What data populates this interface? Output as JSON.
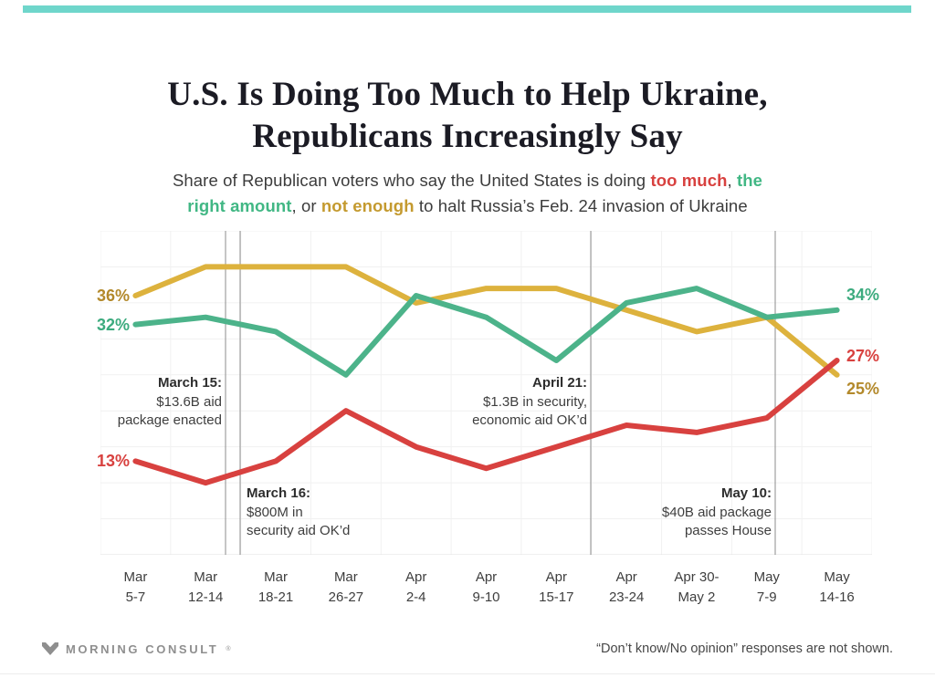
{
  "accent_color": "#6fd6cb",
  "header": {
    "title_line1": "U.S. Is Doing Too Much to Help Ukraine,",
    "title_line2": "Republicans Increasingly Say"
  },
  "subtitle": {
    "segments": [
      {
        "text": "Share of Republican voters who say the United States is doing "
      },
      {
        "text": "too much",
        "color": "#d8413f",
        "bold": true
      },
      {
        "text": ", "
      },
      {
        "text": "the",
        "color": "#41b784",
        "bold": true
      },
      {
        "br": true
      },
      {
        "text": "right amount",
        "color": "#41b784",
        "bold": true
      },
      {
        "text": ", or "
      },
      {
        "text": "not enough",
        "color": "#c49a2f",
        "bold": true
      },
      {
        "text": " to halt Russia’s Feb. 24 invasion of Ukraine"
      }
    ]
  },
  "chart_data": {
    "type": "line",
    "title": "U.S. Is Doing Too Much to Help Ukraine, Republicans Increasingly Say",
    "subtitle": "Share of Republican voters who say the United States is doing too much, the right amount, or not enough to halt Russia’s Feb. 24 invasion of Ukraine",
    "categories": [
      [
        "Mar",
        "5-7"
      ],
      [
        "Mar",
        "12-14"
      ],
      [
        "Mar",
        "18-21"
      ],
      [
        "Mar",
        "26-27"
      ],
      [
        "Apr",
        "2-4"
      ],
      [
        "Apr",
        "9-10"
      ],
      [
        "Apr",
        "15-17"
      ],
      [
        "Apr",
        "23-24"
      ],
      [
        "Apr 30-",
        "May 2"
      ],
      [
        "May",
        "7-9"
      ],
      [
        "May",
        "14-16"
      ]
    ],
    "ylim": [
      0,
      45
    ],
    "y_grid_step": 5,
    "grid": true,
    "legend_position": "inline-in-subtitle",
    "series": [
      {
        "key": "not_enough",
        "name": "Not enough",
        "color": "#ddb23d",
        "values": [
          36,
          40,
          40,
          40,
          35,
          37,
          37,
          34,
          31,
          33,
          25
        ]
      },
      {
        "key": "right_amount",
        "name": "The right amount",
        "color": "#4cb38a",
        "values": [
          32,
          33,
          31,
          25,
          36,
          33,
          27,
          35,
          37,
          33,
          34
        ]
      },
      {
        "key": "too_much",
        "name": "Too much",
        "color": "#d8413f",
        "values": [
          13,
          10,
          13,
          20,
          15,
          12,
          15,
          18,
          17,
          19,
          27
        ]
      }
    ],
    "edge_labels": {
      "start": [
        {
          "text": "36%",
          "series": "not_enough",
          "value": 36,
          "color": "#b3892b",
          "dy": 0
        },
        {
          "text": "32%",
          "series": "right_amount",
          "value": 32,
          "color": "#3cab7e",
          "dy": 0
        },
        {
          "text": "13%",
          "series": "too_much",
          "value": 13,
          "color": "#d8413f",
          "dy": 0
        }
      ],
      "end": [
        {
          "text": "34%",
          "series": "right_amount",
          "value": 34,
          "color": "#3cab7e",
          "dy": -17
        },
        {
          "text": "27%",
          "series": "too_much",
          "value": 27,
          "color": "#d8413f",
          "dy": -5
        },
        {
          "text": "25%",
          "series": "not_enough",
          "value": 25,
          "color": "#b3892b",
          "dy": 15
        }
      ]
    },
    "annotations": [
      {
        "date": "March 15:",
        "lines": [
          "$13.6B aid",
          "package enacted"
        ],
        "line_x": 137,
        "text_align": "right",
        "text_edge_x": 243,
        "text_top": 410
      },
      {
        "date": "March 16:",
        "lines": [
          "$800M in",
          "security aid OK’d"
        ],
        "line_x": 153,
        "text_align": "left",
        "text_edge_x": 270,
        "text_top": 531
      },
      {
        "date": "April 21:",
        "lines": [
          "$1.3B in security,",
          "economic aid OK’d"
        ],
        "line_x": 537,
        "text_align": "right",
        "text_edge_x": 643,
        "text_top": 410
      },
      {
        "date": "May 10:",
        "lines": [
          "$40B aid package",
          "passes House"
        ],
        "line_x": 739,
        "text_align": "right",
        "text_edge_x": 845,
        "text_top": 531
      }
    ]
  },
  "footer": {
    "brand": "MORNING CONSULT",
    "trademark": "®",
    "note": "“Don’t know/No opinion” responses are not shown."
  }
}
